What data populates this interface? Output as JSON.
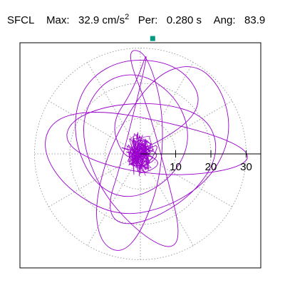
{
  "header": {
    "station": "SFCL",
    "max_label": "Max:",
    "max_value": "32.9",
    "max_unit": "cm/s",
    "max_unit_exp": "2",
    "per_label": "Per:",
    "per_value": "0.280",
    "per_unit": "s",
    "ang_label": "Ang:",
    "ang_value": "83.9"
  },
  "chart_data": {
    "type": "scatter",
    "title": "",
    "radial_ticks": [
      "10",
      "20",
      "30"
    ],
    "radial_tick_values": [
      10,
      20,
      30
    ],
    "rmax": 35,
    "grid": true,
    "trace_color": "#9900cc",
    "marker_color": "#009980",
    "peak_marker": {
      "radius": 32.9,
      "angle_deg": 83.9
    },
    "trace_note": "particle-motion orbit trace, approximate",
    "trace_points": [
      [
        0,
        0
      ],
      [
        3.5,
        1.2
      ],
      [
        -2.1,
        3.8
      ],
      [
        1.8,
        -4.2
      ],
      [
        -3.9,
        -1.5
      ],
      [
        4.6,
        2.4
      ],
      [
        -1.3,
        4.9
      ],
      [
        -4.2,
        -3.6
      ],
      [
        2.7,
        -3.3
      ],
      [
        5.8,
        0.9
      ],
      [
        -5.1,
        1.7
      ],
      [
        0.6,
        -5.7
      ],
      [
        6.8,
        4.8
      ],
      [
        -6.2,
        -4.9
      ],
      [
        3.1,
        6.9
      ],
      [
        -2.8,
        -7.2
      ],
      [
        8.2,
        -2.1
      ],
      [
        -7.9,
        2.6
      ],
      [
        0,
        0
      ],
      [
        18.9,
        12.5
      ],
      [
        12.0,
        25.0
      ],
      [
        -4.0,
        27.5
      ],
      [
        -16.0,
        20.5
      ],
      [
        -19.5,
        6.5
      ],
      [
        -14.0,
        -8.0
      ],
      [
        -3.5,
        -13.5
      ],
      [
        8.5,
        -7.5
      ],
      [
        14.5,
        3.5
      ],
      [
        11.0,
        15.5
      ],
      [
        0,
        23.5
      ],
      [
        -11.5,
        20.5
      ],
      [
        -17.5,
        7.5
      ],
      [
        -12.0,
        -9.5
      ],
      [
        -1.0,
        -22.0
      ],
      [
        8.5,
        -27.5
      ],
      [
        11.5,
        -23.0
      ],
      [
        8.0,
        -8.0
      ],
      [
        2.5,
        12.0
      ],
      [
        -3.0,
        26.0
      ],
      [
        -2.5,
        30.0
      ],
      [
        2.0,
        28.0
      ],
      [
        6.5,
        13.0
      ],
      [
        6.0,
        -6.0
      ],
      [
        0.5,
        -22.0
      ],
      [
        -5.5,
        -28.5
      ],
      [
        -11.5,
        -25.0
      ],
      [
        -13.0,
        -14.0
      ],
      [
        -8.0,
        4.0
      ],
      [
        3.5,
        22.0
      ],
      [
        15.0,
        26.0
      ],
      [
        23.0,
        19.0
      ],
      [
        26.0,
        6.0
      ],
      [
        20.5,
        -6.5
      ],
      [
        8.5,
        -15.0
      ],
      [
        -6.5,
        -18.0
      ],
      [
        -21.0,
        -10.0
      ],
      [
        -28.0,
        1.0
      ],
      [
        -25.0,
        10.0
      ],
      [
        -12.5,
        12.5
      ],
      [
        5.5,
        9.5
      ],
      [
        24.0,
        4.5
      ],
      [
        32.0,
        -0.5
      ],
      [
        26.5,
        -4.5
      ],
      [
        9.0,
        -6.5
      ],
      [
        -10.0,
        -3.5
      ],
      [
        -21.5,
        2.5
      ],
      [
        -20.0,
        9.5
      ],
      [
        -8.5,
        14.0
      ],
      [
        6.5,
        14.5
      ],
      [
        19.0,
        10.5
      ],
      [
        22.5,
        0.5
      ],
      [
        16.0,
        -10.5
      ],
      [
        4.0,
        -18.5
      ],
      [
        -6.0,
        -20.5
      ],
      [
        -9.5,
        -15.0
      ],
      [
        -5.5,
        -3.0
      ],
      [
        3.3,
        32.8
      ],
      [
        -2.0,
        18.0
      ],
      [
        -8.5,
        8.5
      ],
      [
        -4.5,
        -1.5
      ],
      [
        0,
        0
      ]
    ]
  }
}
